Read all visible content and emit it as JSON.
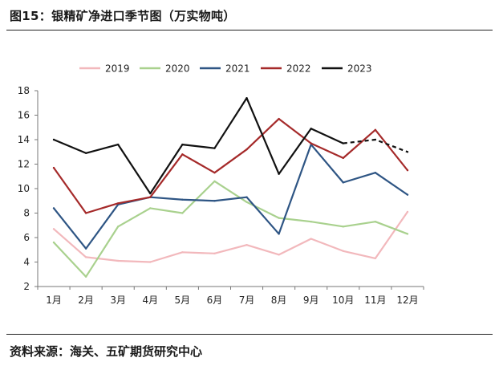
{
  "header": {
    "figure_title": "图15：银精矿净进口季节图（万实物吨）"
  },
  "footer": {
    "source": "资料来源：海关、五矿期货研究中心"
  },
  "chart_data": {
    "type": "line",
    "title": "银精矿净进口季节图（万实物吨）",
    "xlabel": "",
    "ylabel": "",
    "categories": [
      "1月",
      "2月",
      "3月",
      "4月",
      "5月",
      "6月",
      "7月",
      "8月",
      "9月",
      "10月",
      "11月",
      "12月"
    ],
    "ylim": [
      2,
      18
    ],
    "yticks": [
      2,
      4,
      6,
      8,
      10,
      12,
      14,
      16,
      18
    ],
    "grid": false,
    "legend_position": "top",
    "series": [
      {
        "name": "2019",
        "color": "#f2b8bc",
        "dashed_from": null,
        "values": [
          6.7,
          4.4,
          4.1,
          4.0,
          4.8,
          4.7,
          5.4,
          4.6,
          5.9,
          4.9,
          4.3,
          8.1
        ]
      },
      {
        "name": "2020",
        "color": "#a9d18e",
        "dashed_from": null,
        "values": [
          5.6,
          2.8,
          6.9,
          8.4,
          8.0,
          10.6,
          8.9,
          7.6,
          7.3,
          6.9,
          7.3,
          6.3
        ]
      },
      {
        "name": "2021",
        "color": "#2e5584",
        "dashed_from": null,
        "values": [
          8.4,
          5.1,
          8.7,
          9.3,
          9.1,
          9.0,
          9.3,
          6.3,
          13.6,
          10.5,
          11.3,
          9.5
        ]
      },
      {
        "name": "2022",
        "color": "#a52a2a",
        "dashed_from": null,
        "values": [
          11.7,
          8.0,
          8.8,
          9.3,
          12.8,
          11.3,
          13.2,
          15.7,
          13.7,
          12.5,
          14.8,
          11.5
        ]
      },
      {
        "name": "2023",
        "color": "#111111",
        "dashed_from": 9,
        "values": [
          14.0,
          12.9,
          13.6,
          9.6,
          13.6,
          13.3,
          17.4,
          11.2,
          14.9,
          13.7,
          14.0,
          13.0
        ]
      }
    ]
  }
}
